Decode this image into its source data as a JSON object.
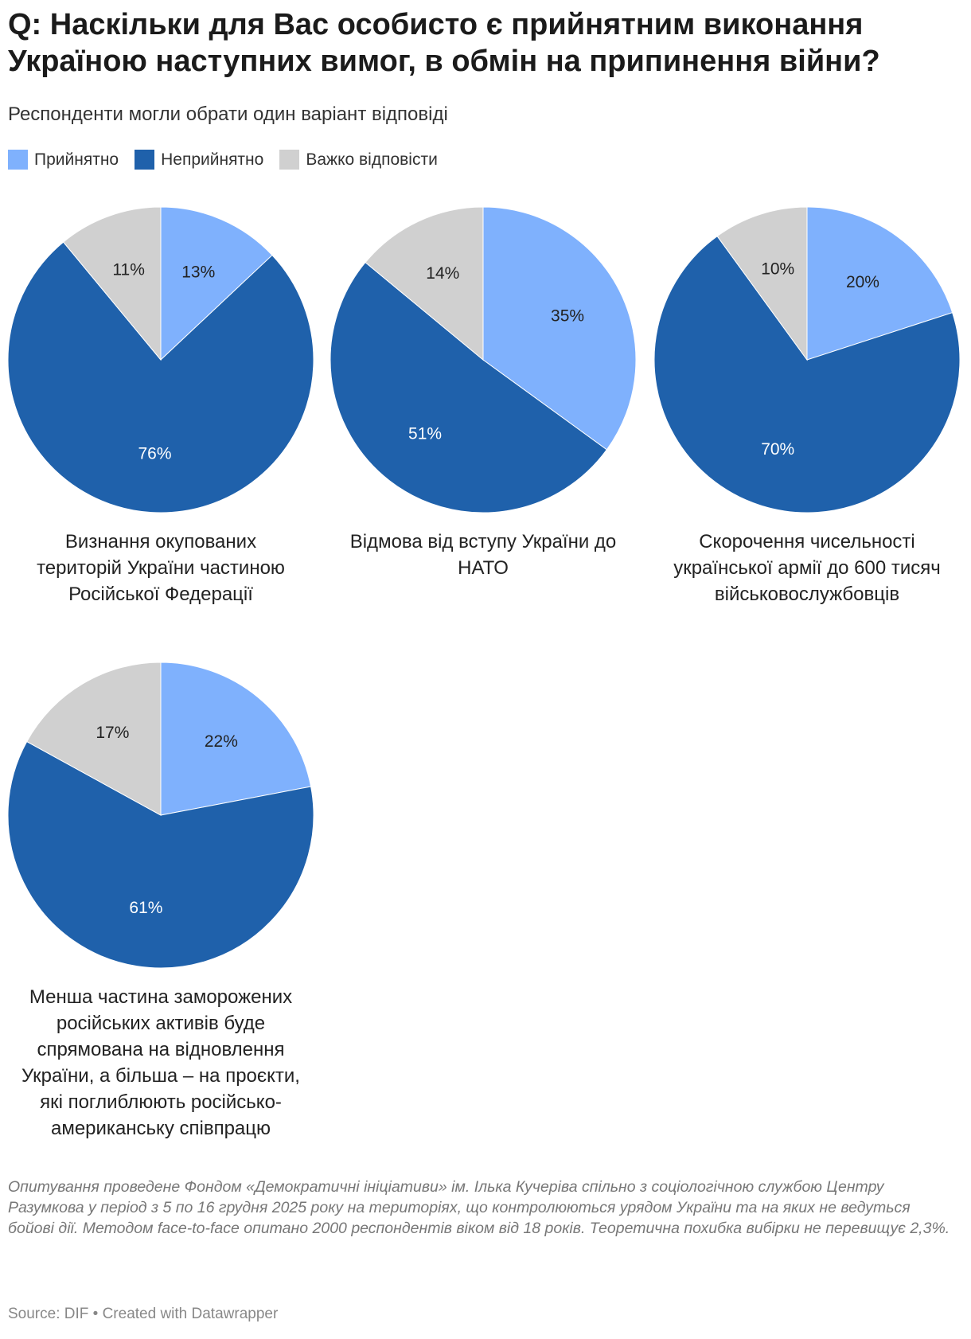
{
  "title": "Q: Наскільки для Вас особисто є прийнятним виконання Україною наступних вимог, в обмін на припинення війни?",
  "subtitle": "Респонденти могли обрати один варіант відповіді",
  "legend": {
    "categories": [
      "Прийнятно",
      "Неприйнятно",
      "Важко відповісти"
    ],
    "colors": [
      "#7fb1fd",
      "#1f61ab",
      "#d0d0d0"
    ]
  },
  "chart_data": [
    {
      "type": "pie",
      "title": "Визнання окупованих територій України частиною Російської Федерації",
      "values": [
        13,
        76,
        11
      ],
      "value_labels": [
        "13%",
        "76%",
        "11%"
      ]
    },
    {
      "type": "pie",
      "title": "Відмова від вступу України до НАТО",
      "values": [
        35,
        51,
        14
      ],
      "value_labels": [
        "35%",
        "51%",
        "14%"
      ]
    },
    {
      "type": "pie",
      "title": "Скорочення чисельності української армії до 600 тисяч військовослужбовців",
      "values": [
        20,
        70,
        10
      ],
      "value_labels": [
        "20%",
        "70%",
        "10%"
      ]
    },
    {
      "type": "pie",
      "title": "Менша частина заморожених російських активів буде спрямована на відновлення України, а більша – на проєкти, які поглиблюють російсько-американську співпрацю",
      "values": [
        22,
        61,
        17
      ],
      "value_labels": [
        "22%",
        "61%",
        "17%"
      ]
    }
  ],
  "notes": "Опитування проведене Фондом «Демократичні ініціативи» ім. Ілька Кучеріва спільно з соціологічною службою Центру Разумкова у період з 5 по 16 грудня 2025 року на територіях, що контролюються урядом України та на яких не ведуться бойові дії. Методом face-to-face опитано 2000 респондентів віком від 18 років. Теоретична похибка вибірки не перевищує 2,3%.",
  "source": "Source: DIF • Created with Datawrapper"
}
